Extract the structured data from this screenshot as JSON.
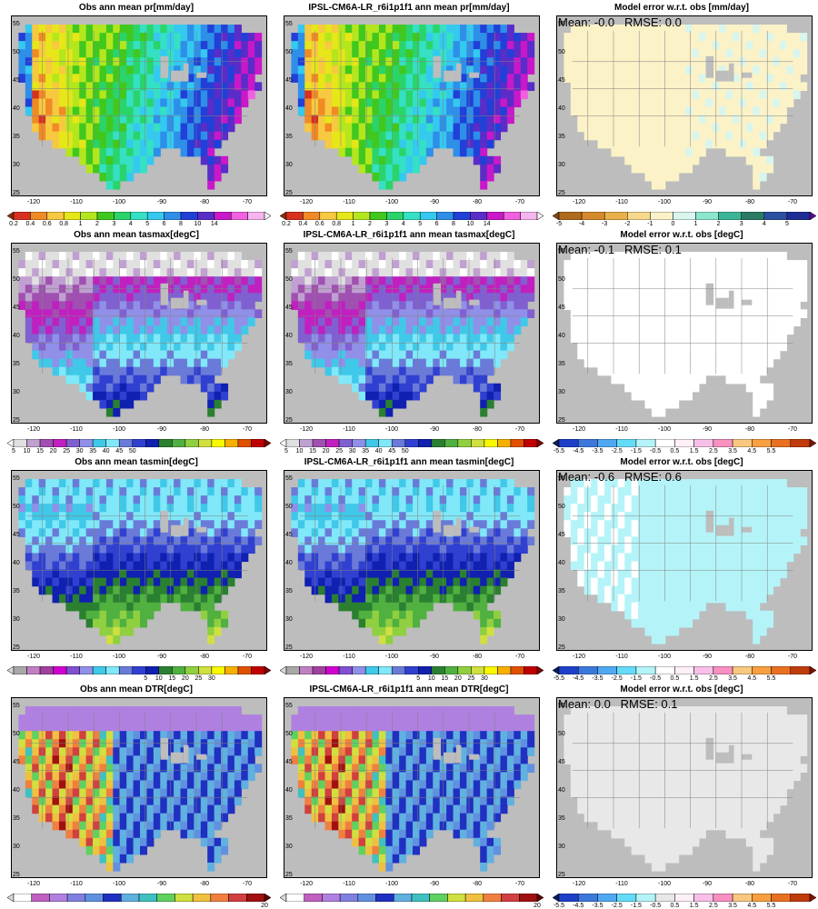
{
  "x_ticks": [
    "-120",
    "-110",
    "-100",
    "-90",
    "-80",
    "-70"
  ],
  "y_ticks": [
    "55",
    "50",
    "45",
    "40",
    "35",
    "30",
    "25"
  ],
  "land_mask": [
    "......................................",
    "..IIIIIIIIIIIIIIIIIIIIIIIIIIIIIIII....",
    ".IIIIIIIIIIIIIIIIIIIIIIIIIIIIIIIIIIII.",
    ".IIIIIIIIIIIIIIIIIIIIIIIIIIIIIIIIIIII.",
    ".IIIIIIIIIIIIIIIIIIIIIIIIIIIIIIIIIIII.",
    ".IIIIIIIIIIIIIIIIIIIIIIIIIIIIIIIIIIII.",
    ".IIIIIIIIIIIIIIIIIIIIIIIIIIIIIIIIIIII.",
    ".IIIIIIIIIIIIIIIIIIIIIIIIIIIIIIIIIII..",
    "..IIIIIIIIIIIIIIIIIIIIIIIIIIIIIIIIIII.",
    "..IIIIIIIIIIIIIIIIIIIIIIIIIIIIIIIIII..",
    "..IIIIIIIIIIIIIIIIIIIIIIIIIIIIIIIII...",
    "..IIIIIIIIIIIIIIIIIIIIIIIIIIIIIIII....",
    "...IIIIIIIIIIIIIIIIIIIIIIIIIIIIIII....",
    "...IIIIIIIIIIIIIIIIIIIIIIIIIIIIII.....",
    "....IIIIIIIIIIIIIIIIIIIIIIIIIIII......",
    "......IIIIIIIIIIIIIIIIIIIIIIIII.......",
    "........IIIIIIIIIIIIII...IIIII........",
    "..........IIIIIIIIIII.......IIII......",
    "...........IIIIIIIII.........III......",
    ".............IIIII...........II.......",
    "..............II.............I........",
    "......................................"
  ],
  "panels": [
    {
      "title": "Obs  ann mean pr[mm/day]",
      "field": "pr",
      "stat": "",
      "colorbar": {
        "colors": [
          "#8c2d04",
          "#d7301f",
          "#f08a24",
          "#f7c940",
          "#e6e619",
          "#b4e61e",
          "#41c81e",
          "#2ad46a",
          "#35e0c4",
          "#35c9f0",
          "#2e8fe8",
          "#2140d8",
          "#5a2cc8",
          "#c818c8",
          "#f060e0",
          "#f6b4f0",
          "#f0f0f0"
        ],
        "labels": [
          "0.2",
          "0.4",
          "0.6",
          "0.8",
          "1",
          "2",
          "3",
          "4",
          "5",
          "6",
          "8",
          "10",
          "14"
        ],
        "label_start": 1
      }
    },
    {
      "title": "IPSL-CM6A-LR_r6i1p1f1 ann mean pr[mm/day]",
      "field": "pr",
      "stat": "",
      "colorbar": {
        "colors": [
          "#8c2d04",
          "#d7301f",
          "#f08a24",
          "#f7c940",
          "#e6e619",
          "#b4e61e",
          "#41c81e",
          "#2ad46a",
          "#35e0c4",
          "#35c9f0",
          "#2e8fe8",
          "#2140d8",
          "#5a2cc8",
          "#c818c8",
          "#f060e0",
          "#f6b4f0",
          "#f0f0f0"
        ],
        "labels": [
          "0.2",
          "0.4",
          "0.6",
          "0.8",
          "1",
          "2",
          "3",
          "4",
          "5",
          "6",
          "8",
          "10",
          "14"
        ],
        "label_start": 1
      }
    },
    {
      "title": "Model error w.r.t. obs [mm/day]",
      "field": "pr_err",
      "stat": "Mean: -0.0   RMSE: 0.0",
      "colorbar": {
        "colors": [
          "#7a4a10",
          "#b06a1c",
          "#d48a2c",
          "#e8b04a",
          "#f6d98a",
          "#fbf2c8",
          "#d8f6ee",
          "#8ce6cc",
          "#3cb496",
          "#2a7a64",
          "#2a50a0",
          "#1e2c96",
          "#5a0a96"
        ],
        "labels": [
          "-5",
          "-4",
          "-3",
          "-2",
          "-1",
          "0",
          "1",
          "2",
          "3",
          "4",
          "5"
        ],
        "label_start": 1
      }
    },
    {
      "title": "Obs  ann mean tasmax[degC]",
      "field": "tasmax",
      "stat": "",
      "colorbar": {
        "colors": [
          "#ffffff",
          "#e0e0e0",
          "#c0a0d0",
          "#a050b0",
          "#c020c0",
          "#8060d0",
          "#9090e8",
          "#40c8e8",
          "#80e8f8",
          "#6a7ad8",
          "#3040d0",
          "#1020b0",
          "#2a8030",
          "#50b040",
          "#90d040",
          "#d0e040",
          "#f8f800",
          "#f8b000",
          "#e05000",
          "#c00000",
          "#800000"
        ],
        "labels": [
          "5",
          "10",
          "15",
          "20",
          "25",
          "30",
          "35",
          "40",
          "45",
          "50"
        ],
        "label_start": 1
      }
    },
    {
      "title": "IPSL-CM6A-LR_r6i1p1f1 ann mean tasmax[degC]",
      "field": "tasmax",
      "stat": "",
      "colorbar": {
        "colors": [
          "#ffffff",
          "#e0e0e0",
          "#c0a0d0",
          "#a050b0",
          "#c020c0",
          "#8060d0",
          "#9090e8",
          "#40c8e8",
          "#80e8f8",
          "#6a7ad8",
          "#3040d0",
          "#1020b0",
          "#2a8030",
          "#50b040",
          "#90d040",
          "#d0e040",
          "#f8f800",
          "#f8b000",
          "#e05000",
          "#c00000",
          "#800000"
        ],
        "labels": [
          "5",
          "10",
          "15",
          "20",
          "25",
          "30",
          "35",
          "40",
          "45",
          "50"
        ],
        "label_start": 1
      }
    },
    {
      "title": "Model error w.r.t. obs [degC]",
      "field": "white_err",
      "stat": "Mean: -0.1   RMSE: 0.1",
      "colorbar": {
        "colors": [
          "#081d58",
          "#1e40c8",
          "#3c78dc",
          "#50a8f0",
          "#64dcf8",
          "#b4f4f8",
          "#ffffff",
          "#fff0f8",
          "#f8c0e8",
          "#f890c0",
          "#f8c880",
          "#f8a040",
          "#e87020",
          "#c03c0c",
          "#801000"
        ],
        "labels": [
          "-5.5",
          "-4.5",
          "-3.5",
          "-2.5",
          "-1.5",
          "-0.5",
          "0.5",
          "1.5",
          "2.5",
          "3.5",
          "4.5",
          "5.5"
        ],
        "label_start": 1
      }
    },
    {
      "title": "Obs  ann mean tasmin[degC]",
      "field": "tasmin",
      "stat": "",
      "colorbar": {
        "colors": [
          "#d8d8d8",
          "#a8a8a8",
          "#c080c0",
          "#a040a0",
          "#d000d0",
          "#8050d0",
          "#9090e8",
          "#40c8e8",
          "#80e8f8",
          "#6a7ad8",
          "#3040d0",
          "#1020b0",
          "#2a8030",
          "#50b040",
          "#90d040",
          "#d0e040",
          "#f8f800",
          "#f8b000",
          "#e05000",
          "#c00000",
          "#800000"
        ],
        "labels": [
          "5",
          "10",
          "15",
          "20",
          "25",
          "30"
        ],
        "label_start": 11
      }
    },
    {
      "title": "IPSL-CM6A-LR_r6i1p1f1 ann mean tasmin[degC]",
      "field": "tasmin",
      "stat": "",
      "colorbar": {
        "colors": [
          "#d8d8d8",
          "#a8a8a8",
          "#c080c0",
          "#a040a0",
          "#d000d0",
          "#8050d0",
          "#9090e8",
          "#40c8e8",
          "#80e8f8",
          "#6a7ad8",
          "#3040d0",
          "#1020b0",
          "#2a8030",
          "#50b040",
          "#90d040",
          "#d0e040",
          "#f8f800",
          "#f8b000",
          "#e05000",
          "#c00000",
          "#800000"
        ],
        "labels": [
          "5",
          "10",
          "15",
          "20",
          "25",
          "30"
        ],
        "label_start": 11
      }
    },
    {
      "title": "Model error w.r.t. obs [degC]",
      "field": "tmin_err",
      "stat": "Mean: -0.6   RMSE: 0.6",
      "colorbar": {
        "colors": [
          "#081d58",
          "#1e40c8",
          "#3c78dc",
          "#50a8f0",
          "#64dcf8",
          "#b4f4f8",
          "#ffffff",
          "#fff0f8",
          "#f8c0e8",
          "#f890c0",
          "#f8c880",
          "#f8a040",
          "#e87020",
          "#c03c0c",
          "#801000"
        ],
        "labels": [
          "-5.5",
          "-4.5",
          "-3.5",
          "-2.5",
          "-1.5",
          "-0.5",
          "0.5",
          "1.5",
          "2.5",
          "3.5",
          "4.5",
          "5.5"
        ],
        "label_start": 1
      }
    },
    {
      "title": "Obs  ann mean DTR[degC]",
      "field": "dtr",
      "stat": "",
      "colorbar": {
        "colors": [
          "#d8d8d8",
          "#ffffff",
          "#c060c0",
          "#b080e0",
          "#8080e0",
          "#6090e0",
          "#2030c0",
          "#60b0e0",
          "#40c0c0",
          "#60d060",
          "#d0e040",
          "#f0c040",
          "#f08040",
          "#d04040",
          "#a01010",
          "#600000"
        ],
        "labels": [
          "20"
        ],
        "label_start": 15
      }
    },
    {
      "title": "IPSL-CM6A-LR_r6i1p1f1 ann mean DTR[degC]",
      "field": "dtr",
      "stat": "",
      "colorbar": {
        "colors": [
          "#d8d8d8",
          "#ffffff",
          "#c060c0",
          "#b080e0",
          "#8080e0",
          "#6090e0",
          "#2030c0",
          "#60b0e0",
          "#40c0c0",
          "#60d060",
          "#d0e040",
          "#f0c040",
          "#f08040",
          "#d04040",
          "#a01010",
          "#600000"
        ],
        "labels": [
          "20"
        ],
        "label_start": 15
      }
    },
    {
      "title": "Model error w.r.t. obs [degC]",
      "field": "dtr_err",
      "stat": "Mean: 0.0   RMSE: 0.1",
      "colorbar": {
        "colors": [
          "#081d58",
          "#1e40c8",
          "#3c78dc",
          "#50a8f0",
          "#64dcf8",
          "#b4f4f8",
          "#e8e8e8",
          "#fff0f8",
          "#f8c0e8",
          "#f890c0",
          "#f8c880",
          "#f8a040",
          "#e87020",
          "#c03c0c",
          "#801000"
        ],
        "labels": [
          "-5.5",
          "-4.5",
          "-3.5",
          "-2.5",
          "-1.5",
          "-0.5",
          "0.5",
          "1.5",
          "2.5",
          "3.5",
          "4.5",
          "5.5"
        ],
        "label_start": 1
      }
    }
  ]
}
